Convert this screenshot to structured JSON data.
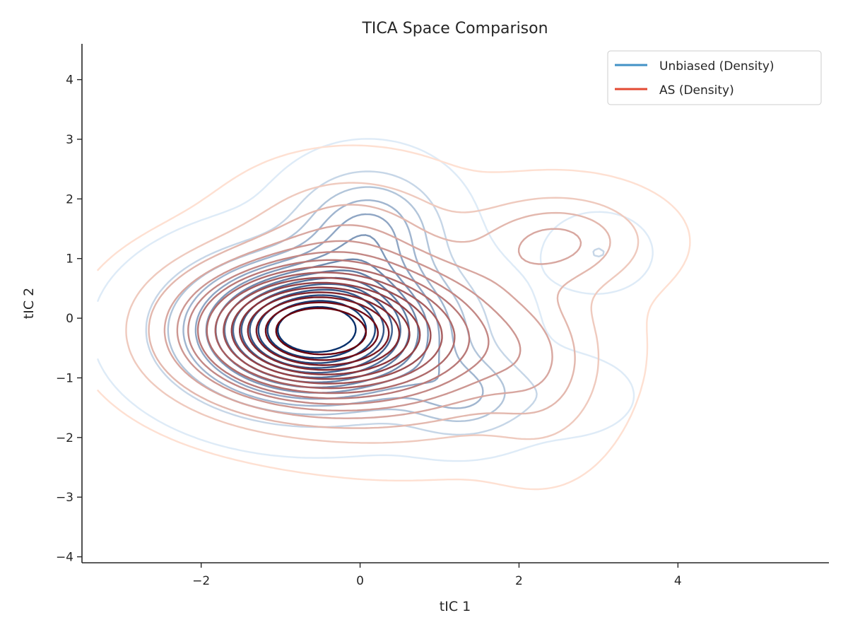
{
  "chart_data": {
    "type": "contour",
    "title": "TICA Space Comparison",
    "xlabel": "tIC 1",
    "ylabel": "tIC 2",
    "xlim": [
      -3.5,
      5.9
    ],
    "ylim": [
      -4.1,
      4.6
    ],
    "xticks": [
      -2,
      0,
      2,
      4
    ],
    "yticks": [
      -4,
      -3,
      -2,
      -1,
      0,
      1,
      2,
      3,
      4
    ],
    "xtick_labels": [
      "−2",
      "0",
      "2",
      "4"
    ],
    "ytick_labels": [
      "−4",
      "−3",
      "−2",
      "−1",
      "0",
      "1",
      "2",
      "3",
      "4"
    ],
    "legend_position": "top-right",
    "grid": false,
    "series": [
      {
        "name": "Unbiased (Density)",
        "legend_color": "#4292c6",
        "color_light": "#deebf7",
        "color_dark": "#08306b",
        "levels": 14,
        "components": [
          {
            "weight": 1.0,
            "mean": [
              -0.55,
              -0.2
            ],
            "sd": [
              0.95,
              0.72
            ],
            "rho": 0.0
          },
          {
            "weight": 0.28,
            "mean": [
              0.1,
              1.5
            ],
            "sd": [
              0.55,
              0.6
            ],
            "rho": 0.0
          },
          {
            "weight": 0.2,
            "mean": [
              1.3,
              -1.3
            ],
            "sd": [
              0.5,
              0.45
            ],
            "rho": 0.0
          },
          {
            "weight": 0.08,
            "mean": [
              3.0,
              1.1
            ],
            "sd": [
              0.35,
              0.35
            ],
            "rho": 0.0
          },
          {
            "weight": 0.05,
            "mean": [
              2.6,
              -1.3
            ],
            "sd": [
              0.5,
              0.4
            ],
            "rho": 0.0
          }
        ]
      },
      {
        "name": "AS (Density)",
        "legend_color": "#e34a33",
        "color_light": "#fee0d2",
        "color_dark": "#67000d",
        "levels": 16,
        "components": [
          {
            "weight": 1.0,
            "mean": [
              -0.7,
              -0.2
            ],
            "sd": [
              1.0,
              0.75
            ],
            "rho": 0.0
          },
          {
            "weight": 0.35,
            "mean": [
              0.7,
              -0.4
            ],
            "sd": [
              1.1,
              0.9
            ],
            "rho": 0.0
          },
          {
            "weight": 0.22,
            "mean": [
              2.5,
              1.3
            ],
            "sd": [
              0.7,
              0.5
            ],
            "rho": 0.0
          },
          {
            "weight": 0.12,
            "mean": [
              2.3,
              -0.9
            ],
            "sd": [
              0.5,
              0.9
            ],
            "rho": 0.0
          },
          {
            "weight": 0.14,
            "mean": [
              -0.1,
              1.6
            ],
            "sd": [
              0.8,
              0.6
            ],
            "rho": 0.0
          }
        ]
      }
    ]
  }
}
